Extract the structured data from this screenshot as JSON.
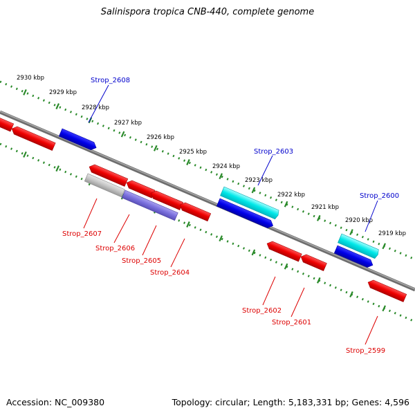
{
  "title": "Salinispora tropica CNB-440, complete genome",
  "accession": "Accession: NC_009380",
  "summary": "Topology: circular; Length: 5,183,331 bp; Genes: 4,596",
  "colors": {
    "forward_label": "#0000cc",
    "reverse_label": "#dd0000",
    "ruler": "#2a8a2a",
    "backbone": "#7a7a7a"
  },
  "ruler_labels": [
    "2930 kbp",
    "2929 kbp",
    "2928 kbp",
    "2927 kbp",
    "2926 kbp",
    "2925 kbp",
    "2924 kbp",
    "2923 kbp",
    "2922 kbp",
    "2921 kbp",
    "2920 kbp",
    "2919 kbp"
  ],
  "gene_labels": [
    "Strop_2608",
    "Strop_2603",
    "Strop_2600",
    "Strop_2607",
    "Strop_2606",
    "Strop_2605",
    "Strop_2604",
    "Strop_2602",
    "Strop_2601",
    "Strop_2599"
  ]
}
